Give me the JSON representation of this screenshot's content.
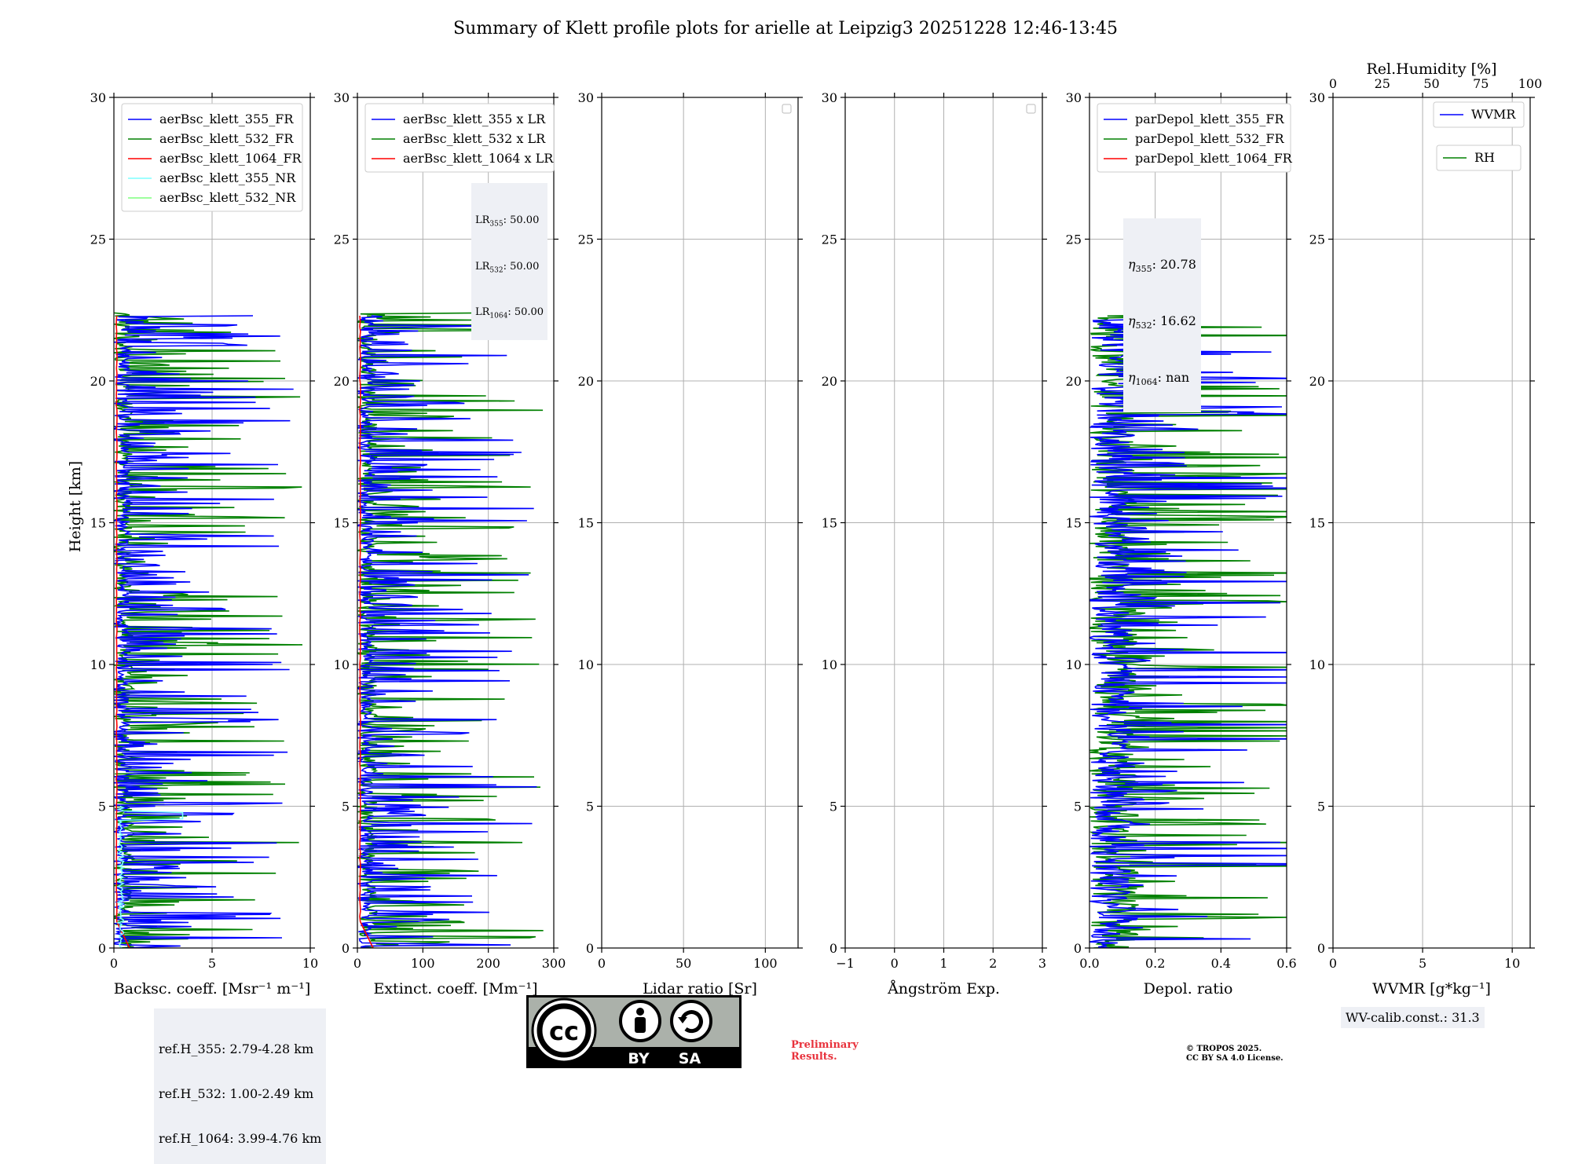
{
  "chart_data": {
    "title": "Summary of Klett profile plots for arielle at Leipzig3 20251228 12:46-13:45",
    "ylabel": "Height [km]",
    "ylim": [
      0,
      30
    ],
    "yticks": [
      0,
      5,
      10,
      15,
      20,
      25,
      30
    ],
    "panels": [
      {
        "type": "line",
        "xlabel": "Backsc. coeff. [Msr⁻¹ m⁻¹]",
        "xlim": [
          0,
          10
        ],
        "xticks": [
          0,
          5,
          10
        ],
        "legend": [
          "aerBsc_klett_355_FR",
          "aerBsc_klett_532_FR",
          "aerBsc_klett_1064_FR",
          "aerBsc_klett_355_NR",
          "aerBsc_klett_532_NR"
        ],
        "legend_colors": [
          "#0000ff",
          "#008000",
          "#ff0000",
          "#7fffff",
          "#7fff7f"
        ],
        "legend_position": "top-left",
        "ytick_labels_visible": true
      },
      {
        "type": "line",
        "xlabel": "Extinct. coeff. [Mm⁻¹]",
        "xlim": [
          0,
          300
        ],
        "xticks": [
          0,
          100,
          200,
          300
        ],
        "legend": [
          "aerBsc_klett_355 x LR",
          "aerBsc_klett_532 x LR",
          "aerBsc_klett_1064 x LR"
        ],
        "legend_colors": [
          "#0000ff",
          "#008000",
          "#ff0000"
        ],
        "legend_position": "top-left",
        "ytick_labels_visible": true
      },
      {
        "type": "line",
        "xlabel": "Lidar ratio [Sr]",
        "xlim": [
          0,
          120
        ],
        "xticks": [
          0,
          50,
          100
        ],
        "legend": [],
        "legend_colors": [],
        "legend_position": "top-right",
        "ytick_labels_visible": true
      },
      {
        "type": "line",
        "xlabel": "Ångström Exp.",
        "xlim": [
          -1,
          3
        ],
        "xticks": [
          -1,
          0,
          1,
          2,
          3
        ],
        "legend": [],
        "legend_colors": [],
        "legend_position": "top-right",
        "ytick_labels_visible": true
      },
      {
        "type": "line",
        "xlabel": "Depol. ratio",
        "xlim": [
          0,
          0.6
        ],
        "xticks": [
          0.0,
          0.2,
          0.4,
          0.6
        ],
        "xtick_labels": [
          "0.0",
          "0.2",
          "0.4",
          "0.6"
        ],
        "legend": [
          "parDepol_klett_355_FR",
          "parDepol_klett_532_FR",
          "parDepol_klett_1064_FR"
        ],
        "legend_colors": [
          "#0000ff",
          "#008000",
          "#ff0000"
        ],
        "legend_position": "top-left",
        "ytick_labels_visible": true
      },
      {
        "type": "line",
        "xlabel": "WVMR [g*kg⁻¹]",
        "xlim": [
          0,
          11
        ],
        "xticks": [
          0,
          5,
          10
        ],
        "top_axis_label": "Rel.Humidity [%]",
        "top_xlim": [
          0,
          100
        ],
        "top_xticks": [
          0,
          25,
          50,
          75,
          100
        ],
        "legend": [
          "WVMR",
          "RH"
        ],
        "legend_colors": [
          "#0000ff",
          "#008000"
        ],
        "legend_position": "top-right",
        "ytick_labels_visible": true
      }
    ],
    "annotations": {
      "ref_heights": [
        "ref.H_355: 2.79-4.28 km",
        "ref.H_532: 1.00-2.49 km",
        "ref.H_1064: 3.99-4.76 km"
      ],
      "lidar_ratios": [
        {
          "label": "LR",
          "sub": "355",
          "value": ": 50.00"
        },
        {
          "label": "LR",
          "sub": "532",
          "value": ": 50.00"
        },
        {
          "label": "LR",
          "sub": "1064",
          "value": ": 50.00"
        }
      ],
      "eta": [
        {
          "label": "η",
          "sub": "355",
          "value": ": 20.78"
        },
        {
          "label": "η",
          "sub": "532",
          "value": ": 16.62"
        },
        {
          "label": "η",
          "sub": "1064",
          "value": ": nan"
        }
      ],
      "wv_calib": "WV-calib.const.: 31.3"
    },
    "footer": {
      "cc_by": "BY",
      "cc_sa": "SA",
      "cc_mark": "cc",
      "preliminary": [
        "Preliminary",
        "Results."
      ],
      "copyright": [
        "© TROPOS 2025.",
        "CC BY SA 4.0 License."
      ]
    }
  },
  "colors": {
    "blue": "#0000ff",
    "green": "#008000",
    "red": "#ff0000",
    "cyan": "#7fffff",
    "lightgreen": "#7fff7f",
    "grid": "#b0b0b0",
    "annotation_bg": "#eef0f5",
    "preliminary": "#e8323c"
  }
}
